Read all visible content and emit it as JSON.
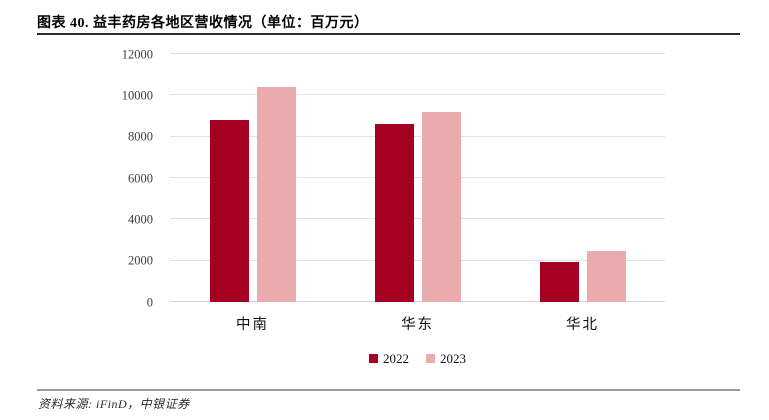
{
  "figure": {
    "title": "图表 40. 益丰药房各地区营收情况（单位：百万元）",
    "source": "资料来源: iFinD，中银证券"
  },
  "chart_data": {
    "type": "bar",
    "title": "益丰药房各地区营收情况",
    "unit": "百万元",
    "categories": [
      "中南",
      "华东",
      "华北"
    ],
    "series": [
      {
        "name": "2022",
        "color": "#A50021",
        "values": [
          8800,
          8600,
          1950
        ]
      },
      {
        "name": "2023",
        "color": "#E9ABAD",
        "values": [
          10400,
          9200,
          2450
        ]
      }
    ],
    "xlabel": "",
    "ylabel": "",
    "ylim": [
      0,
      12000
    ],
    "yticks": [
      0,
      2000,
      4000,
      6000,
      8000,
      10000,
      12000
    ],
    "grid": true,
    "legend_position": "bottom"
  }
}
